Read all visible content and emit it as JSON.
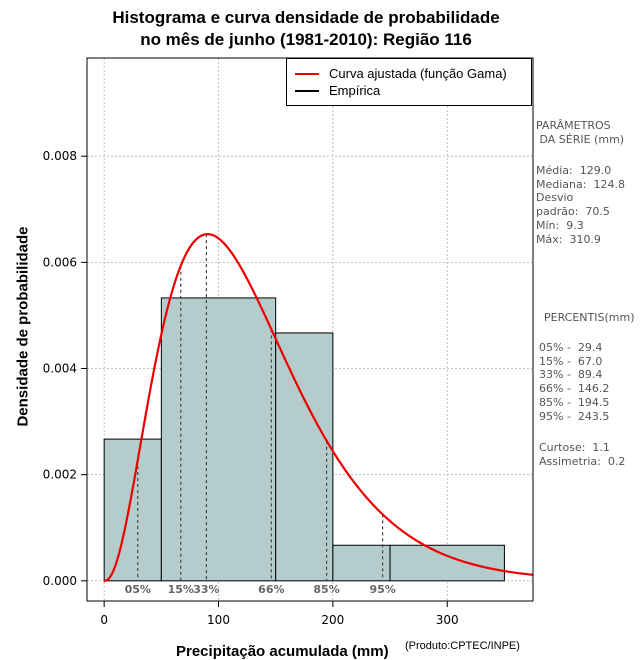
{
  "title": {
    "line1": "Histograma e curva densidade de probabilidade",
    "line2": "no mês de junho (1981-2010): Região 116"
  },
  "credit": "(Produto:CPTEC/INPE)",
  "legend": {
    "fitted": "Curva ajustada (função Gama)",
    "empirical": "Empírica"
  },
  "side_panel": {
    "params_heading": "PARÂMETROS\n DA SÉRIE (mm)",
    "params_body": "Média:  129.0\nMediana:  124.8\nDesvio\npadrão:  70.5\nMín:  9.3\nMáx:  310.9",
    "percentiles_heading": "PERCENTIS(mm)",
    "percentiles_body": "05% -  29.4\n15% -  67.0\n33% -  89.4\n66% -  146.2\n85% -  194.5\n95% -  243.5",
    "shape_body": "Curtose:  1.1\nAssimetria:  0.2"
  },
  "colors": {
    "bars": "#b4cccc",
    "curve": "#ee0000",
    "grid": "#b0b0b0"
  },
  "chart_data": {
    "type": "bar",
    "title": "Histograma e curva densidade de probabilidade no mês de junho (1981-2010): Região 116",
    "xlabel": "Precipitação acumulada (mm)",
    "ylabel": "Densidade de probabilidade",
    "xlim": [
      -15,
      375
    ],
    "ylim": [
      -0.00038,
      0.00985
    ],
    "xticks": [
      0,
      100,
      200,
      300
    ],
    "xtick_labels": [
      "0",
      "100",
      "200",
      "300"
    ],
    "yticks": [
      0.0,
      0.002,
      0.004,
      0.006,
      0.008
    ],
    "ytick_labels": [
      "0.000",
      "0.002",
      "0.004",
      "0.006",
      "0.008"
    ],
    "bins": [
      {
        "from": 0,
        "to": 50,
        "density": 0.00267
      },
      {
        "from": 50,
        "to": 150,
        "density": 0.00533
      },
      {
        "from": 150,
        "to": 200,
        "density": 0.00467
      },
      {
        "from": 200,
        "to": 250,
        "density": 0.00067
      },
      {
        "from": 250,
        "to": 350,
        "density": 0.00067
      }
    ],
    "gamma_fit": {
      "shape": 3.35,
      "rate": 0.026
    },
    "percentiles": [
      {
        "label": "05%",
        "x": 29.4
      },
      {
        "label": "15%",
        "x": 67.0
      },
      {
        "label": "33%",
        "x": 89.4
      },
      {
        "label": "66%",
        "x": 146.2
      },
      {
        "label": "85%",
        "x": 194.5
      },
      {
        "label": "95%",
        "x": 243.5
      }
    ],
    "grid": true,
    "legend_position": "top-right"
  }
}
